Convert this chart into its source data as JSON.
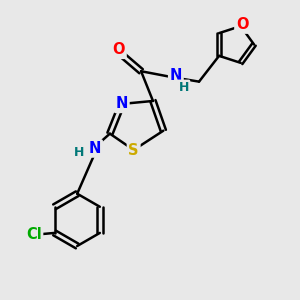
{
  "background_color": "#e8e8e8",
  "bond_color": "#000000",
  "atom_colors": {
    "O": "#ff0000",
    "N": "#0000ff",
    "S": "#ccaa00",
    "Cl": "#00aa00",
    "H_label": "#007777"
  },
  "lw": 1.8,
  "fs": 10.5,
  "fs_small": 9.0
}
